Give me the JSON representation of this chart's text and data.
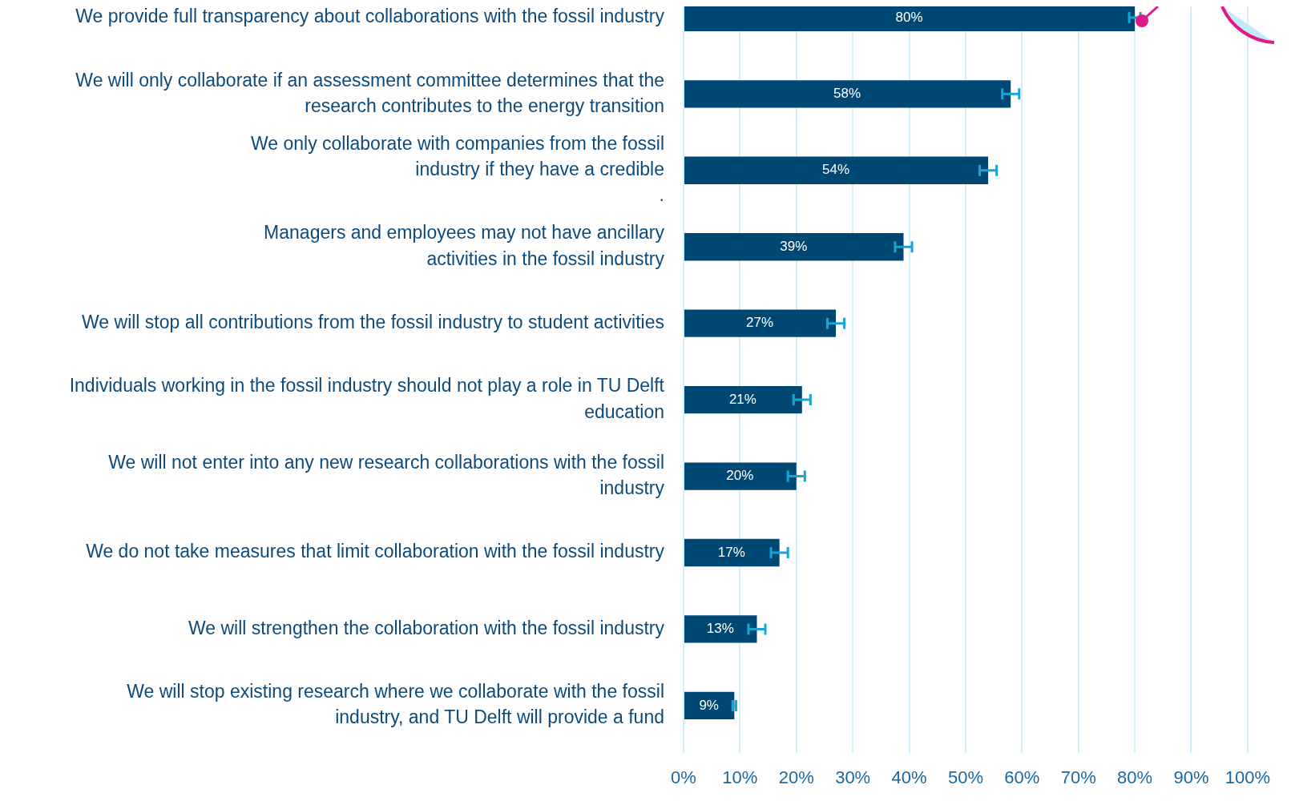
{
  "chart_data": {
    "type": "bar",
    "orientation": "horizontal",
    "categories": [
      "We provide full transparency about collaborations with the fossil industry",
      "We will only collaborate if an assessment committee determines that the\nresearch contributes to the energy transition",
      "We only collaborate with companies from the fossil\nindustry if they have a credible\n.",
      "Managers and employees may not have ancillary\nactivities in the fossil industry",
      "We will stop all contributions from the fossil industry to student activities",
      "Individuals working in the fossil industry should not play a role in TU Delft\neducation",
      "We will not enter into any new research collaborations with the fossil\nindustry",
      "We do not take measures that limit collaboration with the fossil industry",
      "We will strengthen the collaboration with the fossil industry",
      "We will stop existing research where we collaborate with the fossil\nindustry, and TU Delft will provide a fund"
    ],
    "values": [
      80,
      58,
      54,
      39,
      27,
      21,
      20,
      17,
      13,
      9
    ],
    "errors": [
      1,
      1.5,
      1.5,
      1.5,
      1.5,
      1.5,
      1.5,
      1.5,
      1.5,
      0.3
    ],
    "value_labels": [
      "80%",
      "58%",
      "54%",
      "39%",
      "27%",
      "21%",
      "20%",
      "17%",
      "13%",
      "9%"
    ],
    "color": "#004874",
    "xlim": [
      0,
      100
    ],
    "xticks": [
      {
        "value": 0,
        "label": "0%"
      },
      {
        "value": 10,
        "label": "10%"
      },
      {
        "value": 20,
        "label": "20%"
      },
      {
        "value": 30,
        "label": "30%"
      },
      {
        "value": 40,
        "label": "40%"
      },
      {
        "value": 50,
        "label": "50%"
      },
      {
        "value": 60,
        "label": "60%"
      },
      {
        "value": 70,
        "label": "70%"
      },
      {
        "value": 80,
        "label": "80%"
      },
      {
        "value": 90,
        "label": "90%"
      },
      {
        "value": 100,
        "label": "100%"
      }
    ],
    "grid": "x"
  }
}
